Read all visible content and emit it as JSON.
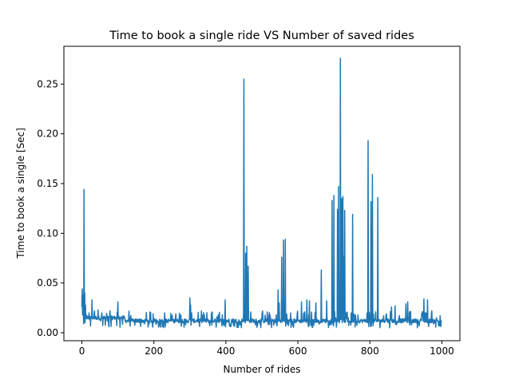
{
  "chart_data": {
    "type": "line",
    "title": "Time to book a single ride VS Number of saved rides",
    "xlabel": "Number of rides",
    "ylabel": "Time to book a single [Sec]",
    "xlim": [
      -50,
      1050
    ],
    "ylim": [
      -0.008,
      0.288
    ],
    "xticks": [
      0,
      200,
      400,
      600,
      800,
      1000
    ],
    "xtick_labels": [
      "0",
      "200",
      "400",
      "600",
      "800",
      "1000"
    ],
    "yticks": [
      0.0,
      0.05,
      0.1,
      0.15,
      0.2,
      0.25
    ],
    "ytick_labels": [
      "0.00",
      "0.05",
      "0.10",
      "0.15",
      "0.20",
      "0.25"
    ],
    "grid": false,
    "series": [
      {
        "color": "#1f77b4",
        "base": 0.012,
        "spikes": [
          [
            0,
            0.026
          ],
          [
            1,
            0.044
          ],
          [
            2,
            0.018
          ],
          [
            3,
            0.038
          ],
          [
            4,
            0.02
          ],
          [
            5,
            0.009
          ],
          [
            6,
            0.144
          ],
          [
            7,
            0.012
          ],
          [
            8,
            0.04
          ],
          [
            9,
            0.01
          ],
          [
            10,
            0.028
          ],
          [
            12,
            0.018
          ],
          [
            15,
            0.014
          ],
          [
            20,
            0.02
          ],
          [
            25,
            0.016
          ],
          [
            28,
            0.033
          ],
          [
            35,
            0.022
          ],
          [
            40,
            0.015
          ],
          [
            45,
            0.023
          ],
          [
            52,
            0.012
          ],
          [
            55,
            0.02
          ],
          [
            60,
            0.016
          ],
          [
            70,
            0.012
          ],
          [
            78,
            0.022
          ],
          [
            88,
            0.015
          ],
          [
            100,
            0.031
          ],
          [
            110,
            0.016
          ],
          [
            130,
            0.015
          ],
          [
            160,
            0.014
          ],
          [
            200,
            0.013
          ],
          [
            230,
            0.02
          ],
          [
            260,
            0.015
          ],
          [
            300,
            0.035
          ],
          [
            302,
            0.028
          ],
          [
            305,
            0.02
          ],
          [
            320,
            0.013
          ],
          [
            340,
            0.018
          ],
          [
            360,
            0.02
          ],
          [
            375,
            0.016
          ],
          [
            390,
            0.018
          ],
          [
            398,
            0.033
          ],
          [
            420,
            0.014
          ],
          [
            447,
            0.012
          ],
          [
            450,
            0.255
          ],
          [
            452,
            0.02
          ],
          [
            455,
            0.08
          ],
          [
            458,
            0.087
          ],
          [
            460,
            0.012
          ],
          [
            462,
            0.067
          ],
          [
            470,
            0.014
          ],
          [
            490,
            0.012
          ],
          [
            500,
            0.016
          ],
          [
            520,
            0.018
          ],
          [
            540,
            0.018
          ],
          [
            545,
            0.043
          ],
          [
            548,
            0.03
          ],
          [
            555,
            0.076
          ],
          [
            560,
            0.093
          ],
          [
            565,
            0.094
          ],
          [
            570,
            0.013
          ],
          [
            580,
            0.02
          ],
          [
            610,
            0.031
          ],
          [
            615,
            0.012
          ],
          [
            625,
            0.033
          ],
          [
            632,
            0.032
          ],
          [
            650,
            0.03
          ],
          [
            665,
            0.063
          ],
          [
            680,
            0.032
          ],
          [
            690,
            0.012
          ],
          [
            695,
            0.133
          ],
          [
            700,
            0.138
          ],
          [
            705,
            0.015
          ],
          [
            710,
            0.124
          ],
          [
            713,
            0.147
          ],
          [
            716,
            0.013
          ],
          [
            718,
            0.276
          ],
          [
            720,
            0.12
          ],
          [
            722,
            0.135
          ],
          [
            725,
            0.137
          ],
          [
            727,
            0.077
          ],
          [
            730,
            0.123
          ],
          [
            735,
            0.02
          ],
          [
            740,
            0.015
          ],
          [
            748,
            0.02
          ],
          [
            752,
            0.119
          ],
          [
            758,
            0.014
          ],
          [
            790,
            0.013
          ],
          [
            795,
            0.193
          ],
          [
            800,
            0.018
          ],
          [
            803,
            0.132
          ],
          [
            807,
            0.159
          ],
          [
            815,
            0.014
          ],
          [
            822,
            0.136
          ],
          [
            850,
            0.014
          ],
          [
            860,
            0.026
          ],
          [
            870,
            0.027
          ],
          [
            880,
            0.015
          ],
          [
            895,
            0.014
          ],
          [
            900,
            0.029
          ],
          [
            905,
            0.031
          ],
          [
            920,
            0.013
          ],
          [
            950,
            0.034
          ],
          [
            960,
            0.033
          ],
          [
            972,
            0.022
          ],
          [
            985,
            0.015
          ],
          [
            995,
            0.017
          ],
          [
            998,
            0.012
          ]
        ]
      }
    ]
  }
}
